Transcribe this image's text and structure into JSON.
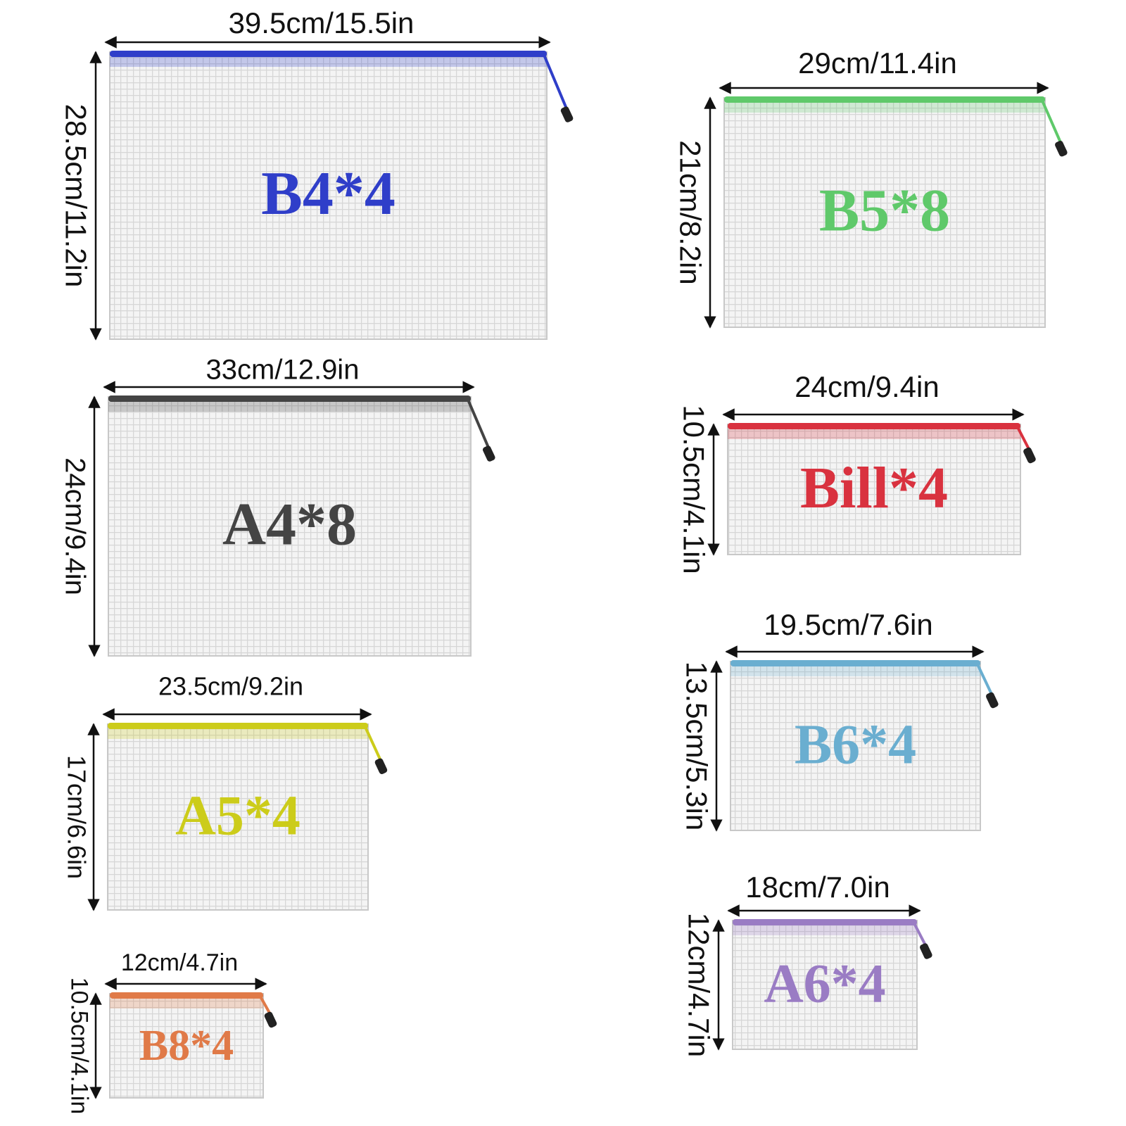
{
  "items": [
    {
      "label": "B4*4",
      "width": "39.5cm/15.5in",
      "height": "28.5cm/11.2in"
    },
    {
      "label": "B5*8",
      "width": "29cm/11.4in",
      "height": "21cm/8.2in"
    },
    {
      "label": "A4*8",
      "width": "33cm/12.9in",
      "height": "24cm/9.4in"
    },
    {
      "label": "Bill*4",
      "width": "24cm/9.4in",
      "height": "10.5cm/4.1in"
    },
    {
      "label": "A5*4",
      "width": "23.5cm/9.2in",
      "height": "17cm/6.6in"
    },
    {
      "label": "B6*4",
      "width": "19.5cm/7.6in",
      "height": "13.5cm/5.3in"
    },
    {
      "label": "B8*4",
      "width": "12cm/4.7in",
      "height": "10.5cm/4.1in"
    },
    {
      "label": "A6*4",
      "width": "18cm/7.0in",
      "height": "12cm/4.7in"
    }
  ]
}
